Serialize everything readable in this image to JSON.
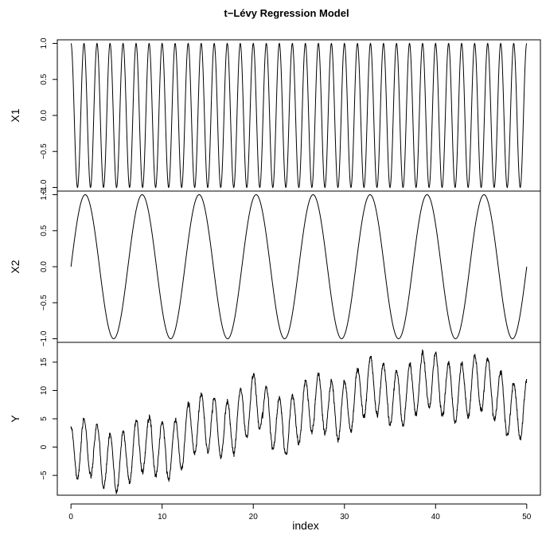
{
  "chart_data": {
    "type": "line",
    "title": "t−Lévy Regression Model",
    "xlabel": "index",
    "xlim": [
      -1.5,
      51.5
    ],
    "x_ticks": [
      0,
      10,
      20,
      30,
      40,
      50
    ],
    "x_tick_labels": [
      "0",
      "10",
      "20",
      "30",
      "40",
      "50"
    ],
    "x_sampling": {
      "from": 0,
      "to": 50,
      "step": 0.02
    },
    "panels": [
      {
        "name": "X1",
        "ylabel": "X1",
        "ylim": [
          -1.05,
          1.05
        ],
        "y_ticks": [
          -1.0,
          -0.5,
          0.0,
          0.5,
          1.0
        ],
        "y_tick_labels": [
          "−1.0",
          "−0.5",
          "0.0",
          "0.5",
          "1.0"
        ],
        "series": {
          "formula": "cos(1.4*pi*x)",
          "color": "#000000"
        }
      },
      {
        "name": "X2",
        "ylabel": "X2",
        "ylim": [
          -1.05,
          1.05
        ],
        "y_ticks": [
          -1.0,
          -0.5,
          0.0,
          0.5,
          1.0
        ],
        "y_tick_labels": [
          "−1.0",
          "−0.5",
          "0.0",
          "0.5",
          "1.0"
        ],
        "series": {
          "formula": "sin(0.32*pi*x)",
          "color": "#000000"
        }
      },
      {
        "name": "Y",
        "ylabel": "Y",
        "ylim": [
          -8.5,
          18.5
        ],
        "y_ticks": [
          -5,
          0,
          5,
          10,
          15
        ],
        "y_tick_labels": [
          "−5",
          "0",
          "5",
          "10",
          "15"
        ],
        "series": {
          "formula": "trend(x) + 5*cos(1.4*pi*x) + 1.5*sin(0.32*pi*x) + noise",
          "color": "#000000"
        }
      }
    ],
    "legend": "none",
    "grid": false
  }
}
